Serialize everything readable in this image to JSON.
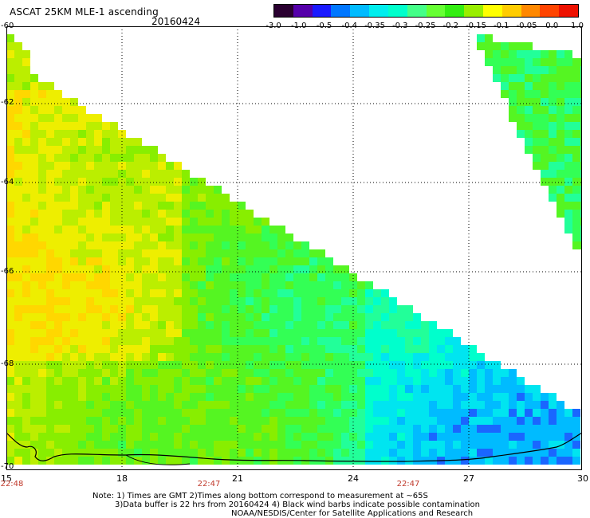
{
  "header": {
    "title": "ASCAT 25KM MLE-1 ascending",
    "date": "20160424"
  },
  "colorbar": {
    "colors": [
      "#2a0030",
      "#5500aa",
      "#1a1aff",
      "#0077ff",
      "#00bbff",
      "#00eeee",
      "#00ffcc",
      "#44ff88",
      "#66ff33",
      "#33ee11",
      "#99ee00",
      "#ffff00",
      "#ffcc00",
      "#ff8800",
      "#ff4400",
      "#ee1100"
    ],
    "labels": [
      "-3.0",
      "-1.0",
      "-0.5",
      "-0.4",
      "-0.35",
      "-0.3",
      "-0.25",
      "-0.2",
      "-0.15",
      "-0.1",
      "-0.05",
      "0.0",
      "1.0"
    ]
  },
  "axes": {
    "y_ticks": [
      "-60",
      "-62",
      "-64",
      "-66",
      "-68",
      "-70"
    ],
    "x_ticks": [
      "15",
      "18",
      "21",
      "24",
      "27",
      "30"
    ],
    "time_ticks": [
      "22:48",
      "22:47",
      "22:47"
    ]
  },
  "notes": {
    "line1": "Note: 1) Times are GMT 2)Times along bottom correspond to measurement at ~65S",
    "line2": "3)Data buffer is 22 hrs from 20160424 4) Black wind barbs indicate possible contamination",
    "line3": "NOAA/NESDIS/Center for Satellite Applications and Research"
  }
}
